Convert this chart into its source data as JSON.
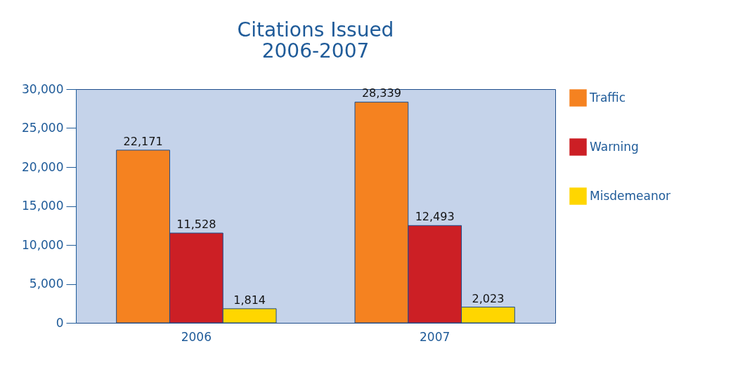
{
  "chart_data": {
    "type": "bar",
    "title": "Citations Issued\n2006-2007",
    "categories": [
      "2006",
      "2007"
    ],
    "series": [
      {
        "name": "Traffic",
        "color": "#f58220",
        "values": [
          22171,
          28339
        ],
        "value_labels": [
          "22,171",
          "28,339"
        ]
      },
      {
        "name": "Warning",
        "color": "#cc1f25",
        "values": [
          11528,
          12493
        ],
        "value_labels": [
          "11,528",
          "12,493"
        ]
      },
      {
        "name": "Misdemeanor",
        "color": "#ffd600",
        "values": [
          1814,
          2023
        ],
        "value_labels": [
          "1,814",
          "2,023"
        ]
      }
    ],
    "ylim": [
      0,
      30000
    ],
    "yticks": [
      {
        "value": 0,
        "label": "0"
      },
      {
        "value": 5000,
        "label": "5,000"
      },
      {
        "value": 10000,
        "label": "10,000"
      },
      {
        "value": 15000,
        "label": "15,000"
      },
      {
        "value": 20000,
        "label": "20,000"
      },
      {
        "value": 25000,
        "label": "25,000"
      },
      {
        "value": 30000,
        "label": "30,000"
      }
    ],
    "grid": false,
    "legend": "right"
  }
}
